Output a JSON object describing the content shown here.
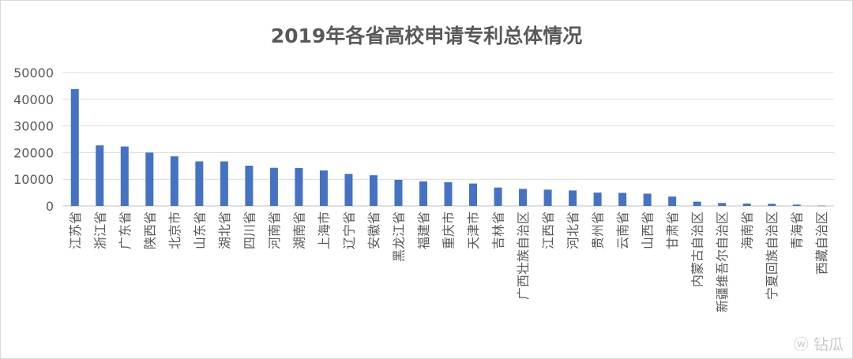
{
  "chart_data": {
    "type": "bar",
    "title": "2019年各省高校申请专利总体情况",
    "xlabel": "",
    "ylabel": "",
    "ylim": [
      0,
      50000
    ],
    "yticks": [
      0,
      10000,
      20000,
      30000,
      40000,
      50000
    ],
    "grid": true,
    "bar_color": "#4472C4",
    "categories": [
      "江苏省",
      "浙江省",
      "广东省",
      "陕西省",
      "北京市",
      "山东省",
      "湖北省",
      "四川省",
      "河南省",
      "湖南省",
      "上海市",
      "辽宁省",
      "安徽省",
      "黑龙江省",
      "福建省",
      "重庆市",
      "天津市",
      "吉林省",
      "广西壮族自治区",
      "江西省",
      "河北省",
      "贵州省",
      "云南省",
      "山西省",
      "甘肃省",
      "内蒙古自治区",
      "新疆维吾尔自治区",
      "海南省",
      "宁夏回族自治区",
      "青海省",
      "西藏自治区"
    ],
    "values": [
      43800,
      22700,
      22300,
      20000,
      18600,
      16700,
      16700,
      15100,
      14300,
      14200,
      13300,
      12000,
      11500,
      9800,
      9200,
      8900,
      8400,
      6900,
      6400,
      6100,
      5800,
      5000,
      4900,
      4600,
      3500,
      1600,
      1100,
      900,
      800,
      500,
      100
    ]
  },
  "watermark": {
    "icon": "weibo-icon",
    "text": "钻瓜"
  }
}
